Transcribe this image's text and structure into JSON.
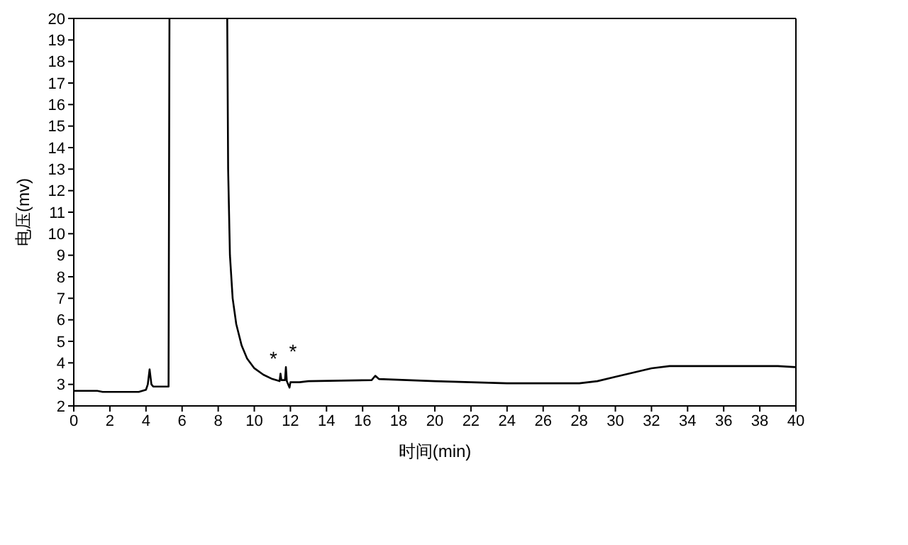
{
  "chart_data": {
    "type": "line",
    "xlabel": "时间(min)",
    "ylabel": "电压(mv)",
    "x": [
      0,
      1.3,
      1.6,
      3.6,
      4.0,
      4.1,
      4.2,
      4.3,
      4.4,
      5.25,
      5.3,
      6.9,
      8.5,
      8.55,
      8.65,
      8.8,
      9.0,
      9.3,
      9.6,
      10,
      10.5,
      11,
      11.4,
      11.45,
      11.5,
      11.7,
      11.75,
      11.8,
      11.95,
      12.0,
      12.5,
      13,
      16.5,
      16.7,
      16.9,
      20,
      24,
      28,
      29,
      30,
      31,
      32,
      33,
      36,
      39,
      40
    ],
    "series": [
      {
        "color": "#000000",
        "values": [
          2.7,
          2.7,
          2.65,
          2.65,
          2.75,
          3.0,
          3.7,
          3.0,
          2.9,
          2.9,
          20,
          null,
          20,
          13,
          9,
          7,
          5.8,
          4.8,
          4.2,
          3.75,
          3.45,
          3.25,
          3.15,
          3.5,
          3.2,
          3.2,
          3.8,
          3.15,
          2.85,
          3.1,
          3.1,
          3.15,
          3.2,
          3.4,
          3.25,
          3.15,
          3.05,
          3.05,
          3.15,
          3.35,
          3.55,
          3.75,
          3.85,
          3.85,
          3.85,
          3.8
        ]
      }
    ],
    "xlim": [
      0,
      40
    ],
    "xticks": [
      0,
      2,
      4,
      6,
      8,
      10,
      12,
      14,
      16,
      18,
      20,
      22,
      24,
      26,
      28,
      30,
      32,
      34,
      36,
      38,
      40
    ],
    "ylim": [
      2,
      20
    ],
    "yticks": [
      2,
      3,
      4,
      5,
      6,
      7,
      8,
      9,
      10,
      11,
      12,
      13,
      14,
      15,
      16,
      17,
      18,
      19,
      20
    ],
    "annotations": [
      {
        "text": "*",
        "x": 11.45,
        "y": 3.5
      },
      {
        "text": "*",
        "x": 11.75,
        "y": 3.8
      }
    ],
    "grid": false,
    "legend": false,
    "marker": "none",
    "line_style": "solid"
  }
}
